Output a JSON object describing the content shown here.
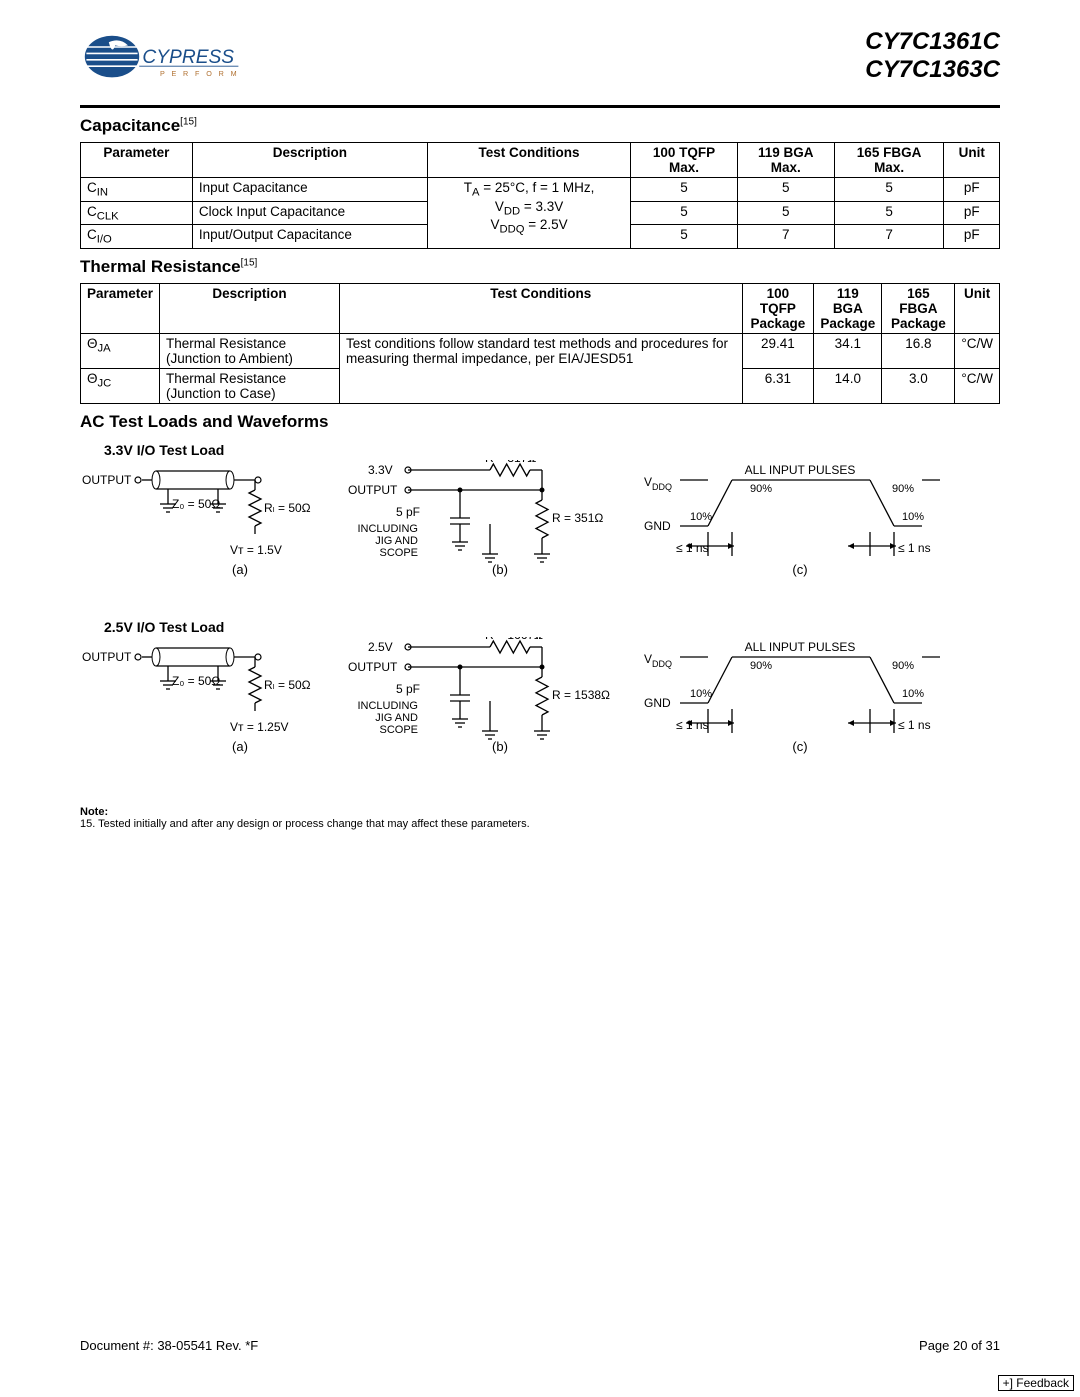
{
  "header": {
    "part1": "CY7C1361C",
    "part2": "CY7C1363C",
    "logo_text": "CYPRESS",
    "logo_sub": "P E R F O R M",
    "logo_color": "#1a4e8a"
  },
  "capacitance": {
    "title": "Capacitance",
    "sup": "[15]",
    "columns": [
      "Parameter",
      "Description",
      "Test Conditions",
      "100 TQFP Max.",
      "119 BGA Max.",
      "165 FBGA Max.",
      "Unit"
    ],
    "test_cond_lines": [
      "Tₐ = 25°C, f = 1 MHz,",
      "Vₒₒ = 3.3V",
      "VₒₒQ = 2.5V"
    ],
    "test_cond_html": "T<sub>A</sub> = 25°C, f = 1 MHz,<br>V<sub>DD</sub> = 3.3V<br>V<sub>DDQ</sub> = 2.5V",
    "rows": [
      {
        "param_html": "C<sub>IN</sub>",
        "desc": "Input Capacitance",
        "v": [
          "5",
          "5",
          "5"
        ],
        "unit": "pF"
      },
      {
        "param_html": "C<sub>CLK</sub>",
        "desc": "Clock Input Capacitance",
        "v": [
          "5",
          "5",
          "5"
        ],
        "unit": "pF"
      },
      {
        "param_html": "C<sub>I/O</sub>",
        "desc": "Input/Output Capacitance",
        "v": [
          "5",
          "7",
          "7"
        ],
        "unit": "pF"
      }
    ]
  },
  "thermal": {
    "title": "Thermal Resistance",
    "sup": "[15]",
    "columns": [
      "Parameter",
      "Description",
      "Test Conditions",
      "100 TQFP Package",
      "119 BGA Package",
      "165 FBGA Package",
      "Unit"
    ],
    "test_cond": "Test conditions follow standard test methods and procedures for measuring thermal impedance, per EIA/JESD51",
    "rows": [
      {
        "param_html": "Θ<sub>JA</sub>",
        "desc": "Thermal Resistance (Junction to Ambient)",
        "v": [
          "29.41",
          "34.1",
          "16.8"
        ],
        "unit": "°C/W"
      },
      {
        "param_html": "Θ<sub>JC</sub>",
        "desc": "Thermal Resistance (Junction to Case)",
        "v": [
          "6.31",
          "14.0",
          "3.0"
        ],
        "unit": "°C/W"
      }
    ]
  },
  "ac": {
    "title": "AC Test Loads and Waveforms",
    "row3v3": {
      "subtitle": "3.3V I/O Test Load",
      "a": {
        "output": "OUTPUT",
        "z0": "Z₀ = 50Ω",
        "rl": "Rₗ = 50Ω",
        "vt": "Vᴛ = 1.5V",
        "label": "(a)"
      },
      "b": {
        "vcc": "3.3V",
        "output": "OUTPUT",
        "cap": "5 pF",
        "inc1": "INCLUDING",
        "inc2": "JIG AND",
        "inc3": "SCOPE",
        "r1": "R = 317Ω",
        "r2": "R = 351Ω",
        "label": "(b)"
      },
      "c": {
        "vddq": "VₒₒQ",
        "gnd": "GND",
        "title": "ALL INPUT PULSES",
        "p90": "90%",
        "p10": "10%",
        "t": "≤  1 ns",
        "label": "(c)"
      }
    },
    "row2v5": {
      "subtitle": "2.5V I/O Test Load",
      "a": {
        "output": "OUTPUT",
        "z0": "Z₀ = 50Ω",
        "rl": "Rₗ = 50Ω",
        "vt": "Vᴛ = 1.25V",
        "label": "(a)"
      },
      "b": {
        "vcc": "2.5V",
        "output": "OUTPUT",
        "cap": "5 pF",
        "inc1": "INCLUDING",
        "inc2": "JIG AND",
        "inc3": "SCOPE",
        "r1": "R = 1667Ω",
        "r2": "R = 1538Ω",
        "label": "(b)"
      },
      "c": {
        "vddq": "VₒₒQ",
        "gnd": "GND",
        "title": "ALL INPUT PULSES",
        "p90": "90%",
        "p10": "10%",
        "t": "≤  1 ns",
        "label": "(c)"
      }
    }
  },
  "note": {
    "head": "Note:",
    "text": "15. Tested initially and after any design or process change that may affect these parameters."
  },
  "footer": {
    "doc": "Document #: 38-05541 Rev. *F",
    "page": "Page 20 of 31",
    "feedback": "+] Feedback"
  },
  "colors": {
    "text": "#000000",
    "border": "#000000",
    "bg": "#ffffff"
  }
}
